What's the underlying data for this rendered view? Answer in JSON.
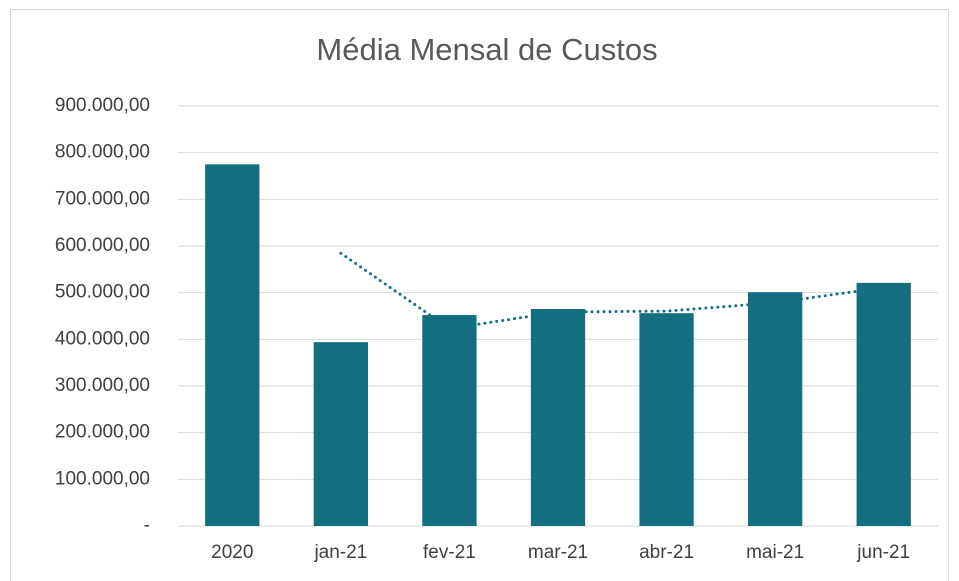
{
  "chart_data": {
    "type": "bar",
    "title": "Média Mensal de Custos",
    "categories": [
      "2020",
      "jan-21",
      "fev-21",
      "mar-21",
      "abr-21",
      "mai-21",
      "jun-21"
    ],
    "values": [
      775000,
      394000,
      452000,
      465000,
      456000,
      501000,
      521000
    ],
    "color": "#136f7f",
    "trend": {
      "color": "#136f7f",
      "values": [
        null,
        584500,
        423000,
        458500,
        460500,
        478500,
        511000
      ]
    },
    "ylim": [
      0,
      900000
    ],
    "yticks": [
      {
        "value": 0,
        "label": "-"
      },
      {
        "value": 100000,
        "label": "100.000,00"
      },
      {
        "value": 200000,
        "label": "200.000,00"
      },
      {
        "value": 300000,
        "label": "300.000,00"
      },
      {
        "value": 400000,
        "label": "400.000,00"
      },
      {
        "value": 500000,
        "label": "500.000,00"
      },
      {
        "value": 600000,
        "label": "600.000,00"
      },
      {
        "value": 700000,
        "label": "700.000,00"
      },
      {
        "value": 800000,
        "label": "800.000,00"
      },
      {
        "value": 900000,
        "label": "900.000,00"
      }
    ],
    "grid": true
  }
}
